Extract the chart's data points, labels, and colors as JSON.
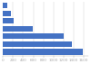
{
  "values": [
    1580,
    1370,
    1200,
    590,
    210,
    160,
    85
  ],
  "bar_color": "#4472c4",
  "background_color": "#ffffff",
  "xlim": [
    0,
    1700
  ],
  "bar_height": 0.72,
  "grid_color": "#cccccc",
  "spine_color": "#aaaaaa",
  "tick_fontsize": 3.0,
  "xticks": [
    0,
    200,
    400,
    600,
    800,
    1000,
    1200,
    1400,
    1600
  ]
}
